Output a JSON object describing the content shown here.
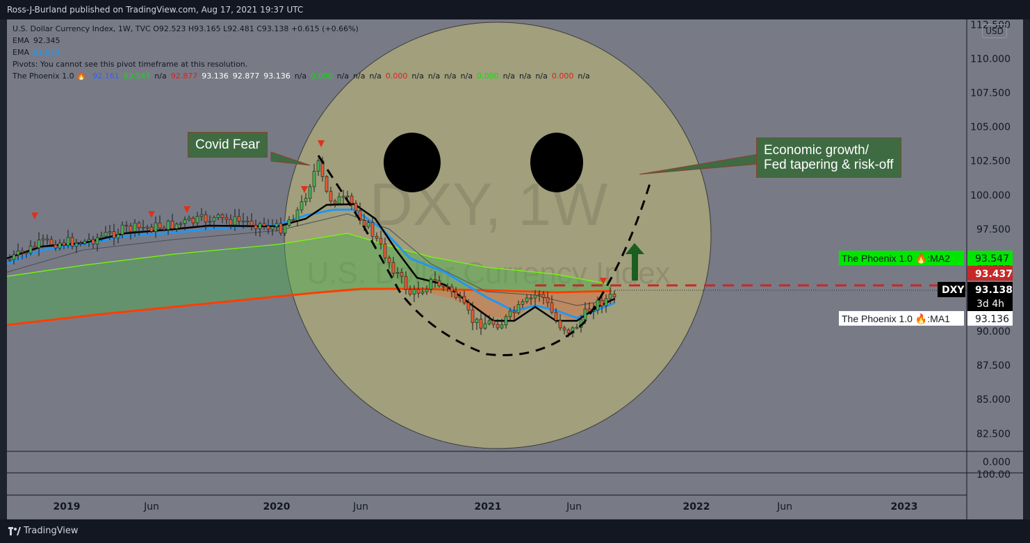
{
  "header": {
    "published": "Ross-J-Burland published on TradingView.com, Aug 17, 2021 19:37 UTC"
  },
  "footer": {
    "brand": "TradingView"
  },
  "legend": {
    "line1": "U.S. Dollar Currency Index, 1W, TVC  O92.523  H93.165  L92.481  C93.138  +0.615 (+0.66%)",
    "ema1_label": "EMA",
    "ema1_value": "92.345",
    "ema2_label": "EMA",
    "ema2_value": "91.914",
    "pivots": "Pivots: You cannot see this pivot timeframe at this resolution.",
    "phoenix_label": "The Phoenix 1.0 🔥",
    "phoenix_values": [
      {
        "text": "92.161",
        "color": "#2962ff"
      },
      {
        "text": "93.547",
        "color": "#00e600"
      },
      {
        "text": "n/a",
        "color": "#131722"
      },
      {
        "text": "92.877",
        "color": "#e01e1e"
      },
      {
        "text": "93.136",
        "color": "#ffffff"
      },
      {
        "text": "92.877",
        "color": "#ffffff"
      },
      {
        "text": "93.136",
        "color": "#ffffff"
      },
      {
        "text": "n/a",
        "color": "#131722"
      },
      {
        "text": "0.000",
        "color": "#00e600"
      },
      {
        "text": "n/a",
        "color": "#131722"
      },
      {
        "text": "n/a",
        "color": "#131722"
      },
      {
        "text": "n/a",
        "color": "#131722"
      },
      {
        "text": "0.000",
        "color": "#e01e1e"
      },
      {
        "text": "n/a",
        "color": "#131722"
      },
      {
        "text": "n/a",
        "color": "#131722"
      },
      {
        "text": "n/a",
        "color": "#131722"
      },
      {
        "text": "n/a",
        "color": "#131722"
      },
      {
        "text": "0.000",
        "color": "#00e600"
      },
      {
        "text": "n/a",
        "color": "#131722"
      },
      {
        "text": "n/a",
        "color": "#131722"
      },
      {
        "text": "n/a",
        "color": "#131722"
      },
      {
        "text": "0.000",
        "color": "#e01e1e"
      },
      {
        "text": "n/a",
        "color": "#131722"
      }
    ]
  },
  "watermark": {
    "symbol": "DXY, 1W",
    "name": "U.S. Dollar Currency Index"
  },
  "currency_button": "USD",
  "annotations": {
    "covid": "Covid Fear",
    "growth_line1": "Economic growth/",
    "growth_line2": "Fed tapering & risk-off"
  },
  "price_labels": {
    "ma2_name": "The Phoenix 1.0 🔥:MA2",
    "ma2_value": "93.547",
    "red_value": "93.437",
    "symbol": "DXY",
    "last_price": "93.138",
    "countdown": "3d 4h",
    "ma1_name": "The Phoenix 1.0 🔥:MA1",
    "ma1_value": "93.136"
  },
  "colors": {
    "chart_bg": "#787b86",
    "smiley": "#a19f7c",
    "up": "#4caf50",
    "down": "#e55b32",
    "ema_fast": "#000000",
    "ema_slow": "#2196f3",
    "ma_red": "#ff3d00",
    "ma_green": "#76ff03"
  },
  "chart_data": {
    "type": "candlestick",
    "symbol": "DXY",
    "timeframe": "1W",
    "y_ticks": [
      "112.500",
      "110.000",
      "107.500",
      "105.000",
      "102.500",
      "100.000",
      "97.500",
      "95.000",
      "92.500",
      "90.000",
      "87.500",
      "85.000",
      "82.500"
    ],
    "y_range": [
      81.1,
      113.3
    ],
    "x_ticks": [
      "2019",
      "Jun",
      "2020",
      "Jun",
      "2021",
      "Jun",
      "2022",
      "Jun",
      "2023"
    ],
    "x_range": [
      "2018-09-01",
      "2023-06-01"
    ],
    "sub_pane_1_tick": "0.000",
    "sub_pane_2_tick": "100.00",
    "series": [
      {
        "name": "EMA",
        "values": [
          [
            2018.75,
            93.9
          ],
          [
            2019.0,
            95.8
          ],
          [
            2019.3,
            96.7
          ],
          [
            2019.6,
            97.3
          ],
          [
            2019.9,
            97.6
          ],
          [
            2020.1,
            97.8
          ],
          [
            2020.2,
            98.5
          ],
          [
            2020.3,
            99.5
          ],
          [
            2020.4,
            98.8
          ],
          [
            2020.5,
            97.8
          ],
          [
            2020.6,
            95.2
          ],
          [
            2020.7,
            93.1
          ],
          [
            2020.8,
            92.9
          ],
          [
            2020.9,
            91.6
          ],
          [
            2021.0,
            90.7
          ],
          [
            2021.1,
            90.7
          ],
          [
            2021.2,
            91.5
          ],
          [
            2021.3,
            91.6
          ],
          [
            2021.4,
            90.9
          ],
          [
            2021.5,
            90.8
          ],
          [
            2021.55,
            91.7
          ],
          [
            2021.65,
            92.5
          ]
        ]
      },
      {
        "name": "EMA",
        "values": [
          [
            2018.75,
            93.2
          ],
          [
            2019.0,
            95.5
          ],
          [
            2019.3,
            96.4
          ],
          [
            2019.6,
            97.0
          ],
          [
            2019.9,
            97.4
          ],
          [
            2020.1,
            97.7
          ],
          [
            2020.3,
            98.9
          ],
          [
            2020.45,
            98.6
          ],
          [
            2020.6,
            96.3
          ],
          [
            2020.8,
            94.0
          ],
          [
            2020.9,
            92.5
          ],
          [
            2021.0,
            91.4
          ],
          [
            2021.1,
            91.3
          ],
          [
            2021.2,
            91.8
          ],
          [
            2021.35,
            91.4
          ],
          [
            2021.45,
            90.9
          ],
          [
            2021.55,
            91.5
          ],
          [
            2021.65,
            91.9
          ]
        ]
      },
      {
        "name": "MA",
        "values": [
          [
            2018.65,
            90.6
          ],
          [
            2020.3,
            93.0
          ],
          [
            2020.6,
            93.4
          ],
          [
            2021.0,
            93.3
          ],
          [
            2021.4,
            93.2
          ],
          [
            2021.65,
            93.3
          ]
        ]
      },
      {
        "name": "MA",
        "values": [
          [
            2018.65,
            93.1
          ],
          [
            2020.3,
            97.3
          ],
          [
            2020.6,
            96.8
          ],
          [
            2021.0,
            95.2
          ],
          [
            2021.4,
            94.0
          ],
          [
            2021.65,
            93.5
          ]
        ]
      }
    ],
    "annotation_levels": {
      "dashed_level": 93.437,
      "last_price": 93.138
    },
    "markers": [
      [
        2018.9,
        98.7
      ],
      [
        2019.3,
        98.8
      ],
      [
        2019.5,
        99.2
      ],
      [
        2020.1,
        100.5
      ],
      [
        2020.2,
        103.8
      ],
      [
        2021.55,
        94.1
      ]
    ]
  }
}
